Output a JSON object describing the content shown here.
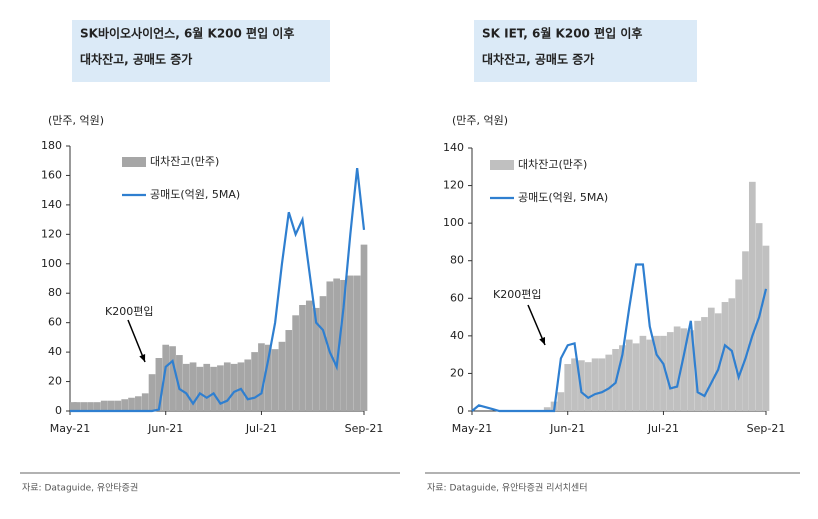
{
  "chart_data": [
    {
      "type": "bar_line",
      "title_lines": [
        "SK바이오사이언스, 6월 K200 편입 이후",
        "대차잔고, 공매도 증가"
      ],
      "unit_label": "(만주, 억원)",
      "annotation": "K200편입",
      "source": "자료: Dataguide, 유안타증권",
      "categories": [
        "May-21",
        null,
        null,
        null,
        null,
        null,
        null,
        null,
        null,
        null,
        null,
        null,
        null,
        null,
        "Jun-21",
        null,
        null,
        null,
        null,
        null,
        null,
        null,
        null,
        null,
        null,
        null,
        null,
        null,
        "Jul-21",
        null,
        null,
        null,
        null,
        null,
        null,
        null,
        null,
        null,
        null,
        null,
        null,
        null,
        null,
        "Sep-21"
      ],
      "ylim": [
        0,
        180
      ],
      "yticks": [
        0,
        20,
        40,
        60,
        80,
        100,
        120,
        140,
        160,
        180
      ],
      "series": [
        {
          "name": "대차잔고(만주)",
          "kind": "bar",
          "color": "#a6a6a6",
          "values": [
            6,
            6,
            6,
            6,
            6,
            7,
            7,
            7,
            8,
            9,
            10,
            12,
            25,
            36,
            45,
            44,
            38,
            32,
            33,
            30,
            32,
            30,
            31,
            33,
            32,
            33,
            35,
            40,
            46,
            45,
            42,
            47,
            55,
            65,
            72,
            75,
            70,
            78,
            88,
            90,
            89,
            92,
            92,
            113
          ]
        },
        {
          "name": "공매도(억원, 5MA)",
          "kind": "line",
          "color": "#2f7fd0",
          "values": [
            0,
            0,
            0,
            0,
            0,
            0,
            0,
            0,
            0,
            0,
            0,
            0,
            0,
            1,
            30,
            34,
            15,
            12,
            5,
            12,
            9,
            12,
            5,
            7,
            13,
            15,
            8,
            9,
            12,
            35,
            60,
            100,
            135,
            120,
            130,
            95,
            60,
            55,
            40,
            30,
            70,
            120,
            165,
            123
          ]
        }
      ]
    },
    {
      "type": "bar_line",
      "title_lines": [
        "SK IET, 6월 K200 편입 이후",
        "대차잔고, 공매도 증가"
      ],
      "unit_label": "(만주, 억원)",
      "annotation": "K200편입",
      "source": "자료: Dataguide, 유안타증권 리서치센터",
      "categories": [
        "May-21",
        null,
        null,
        null,
        null,
        null,
        null,
        null,
        null,
        null,
        null,
        null,
        null,
        null,
        "Jun-21",
        null,
        null,
        null,
        null,
        null,
        null,
        null,
        null,
        null,
        null,
        null,
        null,
        null,
        "Jul-21",
        null,
        null,
        null,
        null,
        null,
        null,
        null,
        null,
        null,
        null,
        null,
        null,
        null,
        null,
        "Sep-21"
      ],
      "ylim": [
        0,
        140
      ],
      "yticks": [
        0,
        20,
        40,
        60,
        80,
        100,
        120,
        140
      ],
      "series": [
        {
          "name": "대차잔고(만주)",
          "kind": "bar",
          "color": "#c0c0c0",
          "values": [
            0,
            0,
            0,
            0,
            0,
            0,
            0,
            0,
            0,
            0,
            0,
            2,
            5,
            10,
            25,
            28,
            27,
            26,
            28,
            28,
            30,
            33,
            35,
            38,
            36,
            40,
            38,
            40,
            40,
            42,
            45,
            44,
            43,
            48,
            50,
            55,
            52,
            58,
            60,
            70,
            85,
            122,
            100,
            88
          ]
        },
        {
          "name": "공매도(억원, 5MA)",
          "kind": "line",
          "color": "#2f7fd0",
          "values": [
            0,
            3,
            2,
            1,
            0,
            0,
            0,
            0,
            0,
            0,
            0,
            0,
            0,
            28,
            35,
            36,
            10,
            7,
            9,
            10,
            12,
            15,
            30,
            55,
            78,
            78,
            45,
            30,
            25,
            12,
            13,
            30,
            48,
            10,
            8,
            15,
            22,
            35,
            32,
            18,
            28,
            40,
            50,
            65
          ]
        }
      ]
    }
  ]
}
